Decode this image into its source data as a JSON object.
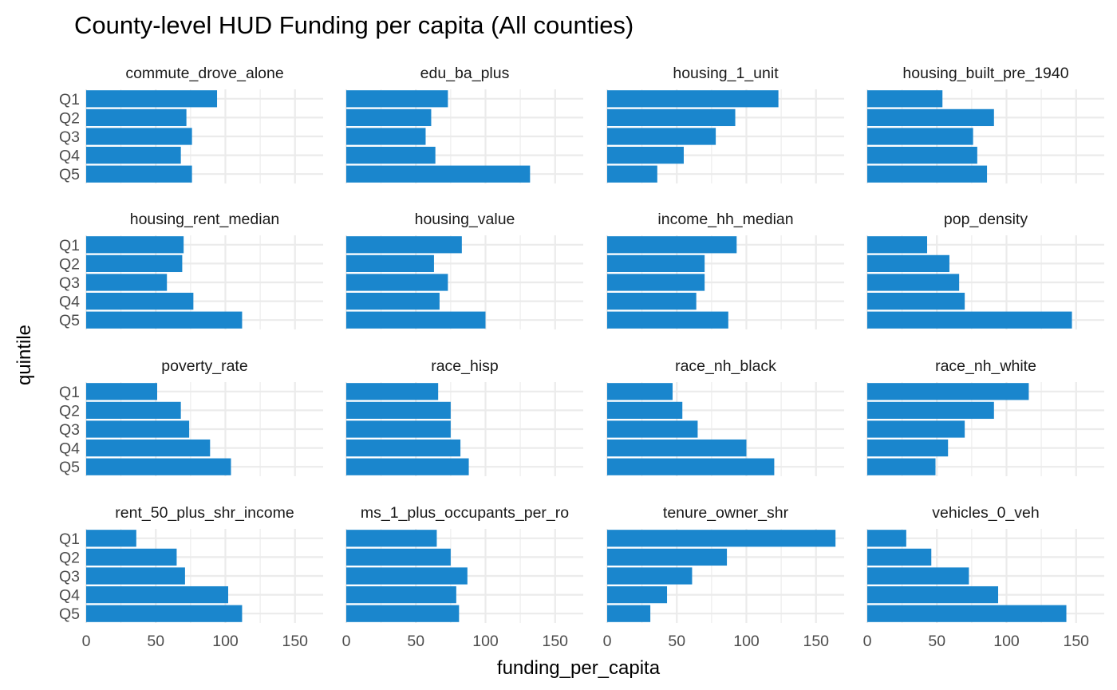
{
  "chart_data": {
    "type": "bar",
    "orientation": "horizontal",
    "title": "County-level HUD Funding per capita (All counties)",
    "xlabel": "funding_per_capita",
    "ylabel": "quintile",
    "categories": [
      "Q1",
      "Q2",
      "Q3",
      "Q4",
      "Q5"
    ],
    "xlim": [
      0,
      170
    ],
    "xticks": [
      0,
      50,
      100,
      150
    ],
    "grid": true,
    "bar_color": "#1a86cd",
    "facets": [
      {
        "name": "commute_drove_alone",
        "values": [
          94,
          72,
          76,
          68,
          76
        ]
      },
      {
        "name": "edu_ba_plus",
        "values": [
          73,
          61,
          57,
          64,
          132
        ]
      },
      {
        "name": "housing_1_unit",
        "values": [
          123,
          92,
          78,
          55,
          36
        ]
      },
      {
        "name": "housing_built_pre_1940",
        "values": [
          54,
          91,
          76,
          79,
          86
        ]
      },
      {
        "name": "housing_rent_median",
        "values": [
          70,
          69,
          58,
          77,
          112
        ]
      },
      {
        "name": "housing_value",
        "values": [
          83,
          63,
          73,
          67,
          100
        ]
      },
      {
        "name": "income_hh_median",
        "values": [
          93,
          70,
          70,
          64,
          87
        ]
      },
      {
        "name": "pop_density",
        "values": [
          43,
          59,
          66,
          70,
          147
        ]
      },
      {
        "name": "poverty_rate",
        "values": [
          51,
          68,
          74,
          89,
          104
        ]
      },
      {
        "name": "race_hisp",
        "values": [
          66,
          75,
          75,
          82,
          88
        ]
      },
      {
        "name": "race_nh_black",
        "values": [
          47,
          54,
          65,
          100,
          120
        ]
      },
      {
        "name": "race_nh_white",
        "values": [
          116,
          91,
          70,
          58,
          49
        ]
      },
      {
        "name": "rent_50_plus_shr_income",
        "values": [
          36,
          65,
          71,
          102,
          112
        ]
      },
      {
        "name": "ms_1_plus_occupants_per_ro",
        "values": [
          65,
          75,
          87,
          79,
          81
        ]
      },
      {
        "name": "tenure_owner_shr",
        "values": [
          164,
          86,
          61,
          43,
          31
        ]
      },
      {
        "name": "vehicles_0_veh",
        "values": [
          28,
          46,
          73,
          94,
          143
        ]
      }
    ]
  }
}
